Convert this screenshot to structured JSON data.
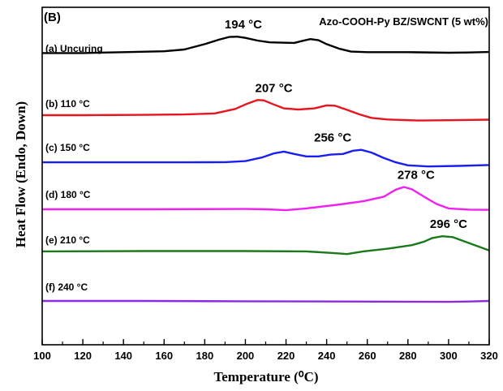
{
  "chart_data": {
    "type": "line",
    "panel_label": "(B)",
    "title": "Azo-COOH-Py BZ/SWCNT (5 wt%)",
    "xlabel": "Temperature (⁰C)",
    "ylabel": "Heat  Flow  (Endo, Down)",
    "xlim": [
      100,
      320
    ],
    "xticks": [
      100,
      120,
      140,
      160,
      180,
      200,
      220,
      240,
      260,
      280,
      300,
      320
    ],
    "series": [
      {
        "name": "(a) Uncuring",
        "color": "#000000",
        "peak_label": "194 °C",
        "peak_label_x": 199,
        "points": [
          [
            100,
            2.8
          ],
          [
            120,
            2.8
          ],
          [
            140,
            2.85
          ],
          [
            160,
            2.9
          ],
          [
            170,
            3.0
          ],
          [
            180,
            3.3
          ],
          [
            187,
            3.55
          ],
          [
            192,
            3.7
          ],
          [
            196,
            3.72
          ],
          [
            200,
            3.65
          ],
          [
            206,
            3.5
          ],
          [
            212,
            3.4
          ],
          [
            218,
            3.38
          ],
          [
            224,
            3.37
          ],
          [
            228,
            3.48
          ],
          [
            232,
            3.58
          ],
          [
            236,
            3.52
          ],
          [
            240,
            3.3
          ],
          [
            246,
            3.05
          ],
          [
            252,
            2.88
          ],
          [
            260,
            2.85
          ],
          [
            280,
            2.85
          ],
          [
            300,
            2.82
          ],
          [
            310,
            2.83
          ],
          [
            320,
            2.86
          ]
        ]
      },
      {
        "name": "(b) 110 °C",
        "color": "#e8141e",
        "peak_label": "207 °C",
        "peak_label_x": 214,
        "points": [
          [
            100,
            2.5
          ],
          [
            120,
            2.5
          ],
          [
            150,
            2.52
          ],
          [
            170,
            2.54
          ],
          [
            185,
            2.6
          ],
          [
            195,
            2.85
          ],
          [
            201,
            3.15
          ],
          [
            206,
            3.35
          ],
          [
            209,
            3.33
          ],
          [
            214,
            3.1
          ],
          [
            219,
            2.88
          ],
          [
            226,
            2.82
          ],
          [
            234,
            2.88
          ],
          [
            240,
            3.05
          ],
          [
            244,
            3.03
          ],
          [
            250,
            2.8
          ],
          [
            256,
            2.55
          ],
          [
            262,
            2.35
          ],
          [
            270,
            2.26
          ],
          [
            285,
            2.2
          ],
          [
            300,
            2.22
          ],
          [
            320,
            2.25
          ]
        ]
      },
      {
        "name": "(c) 150 °C",
        "color": "#1b1ef0",
        "peak_label": "256 °C",
        "peak_label_x": 243,
        "points": [
          [
            100,
            2.45
          ],
          [
            140,
            2.45
          ],
          [
            170,
            2.45
          ],
          [
            190,
            2.46
          ],
          [
            200,
            2.52
          ],
          [
            208,
            2.72
          ],
          [
            214,
            2.95
          ],
          [
            219,
            3.05
          ],
          [
            224,
            2.92
          ],
          [
            230,
            2.78
          ],
          [
            236,
            2.78
          ],
          [
            242,
            2.88
          ],
          [
            248,
            2.92
          ],
          [
            253,
            3.1
          ],
          [
            257,
            3.15
          ],
          [
            262,
            3.0
          ],
          [
            268,
            2.7
          ],
          [
            274,
            2.45
          ],
          [
            280,
            2.28
          ],
          [
            290,
            2.22
          ],
          [
            305,
            2.25
          ],
          [
            320,
            2.3
          ]
        ]
      },
      {
        "name": "(d) 180 °C",
        "color": "#f020f0",
        "peak_label": "278 °C",
        "peak_label_x": 284,
        "points": [
          [
            100,
            2.5
          ],
          [
            150,
            2.5
          ],
          [
            200,
            2.52
          ],
          [
            210,
            2.5
          ],
          [
            220,
            2.45
          ],
          [
            230,
            2.55
          ],
          [
            245,
            2.75
          ],
          [
            258,
            2.95
          ],
          [
            268,
            3.2
          ],
          [
            274,
            3.6
          ],
          [
            278,
            3.75
          ],
          [
            282,
            3.62
          ],
          [
            288,
            3.2
          ],
          [
            294,
            2.8
          ],
          [
            300,
            2.55
          ],
          [
            310,
            2.48
          ],
          [
            320,
            2.47
          ]
        ]
      },
      {
        "name": "(e) 210 °C",
        "color": "#1a7a1a",
        "peak_label": "296 °C",
        "peak_label_x": 300,
        "points": [
          [
            100,
            2.55
          ],
          [
            150,
            2.57
          ],
          [
            200,
            2.57
          ],
          [
            230,
            2.55
          ],
          [
            244,
            2.45
          ],
          [
            250,
            2.4
          ],
          [
            258,
            2.55
          ],
          [
            270,
            2.7
          ],
          [
            282,
            2.9
          ],
          [
            288,
            3.1
          ],
          [
            292,
            3.3
          ],
          [
            297,
            3.4
          ],
          [
            302,
            3.35
          ],
          [
            308,
            3.1
          ],
          [
            314,
            2.85
          ],
          [
            320,
            2.6
          ]
        ]
      },
      {
        "name": "(f) 240 °C",
        "color": "#8a2be2",
        "peak_label": "",
        "peak_label_x": 0,
        "points": [
          [
            100,
            2.5
          ],
          [
            150,
            2.5
          ],
          [
            200,
            2.48
          ],
          [
            250,
            2.47
          ],
          [
            280,
            2.46
          ],
          [
            300,
            2.45
          ],
          [
            310,
            2.47
          ],
          [
            320,
            2.5
          ]
        ]
      }
    ]
  }
}
